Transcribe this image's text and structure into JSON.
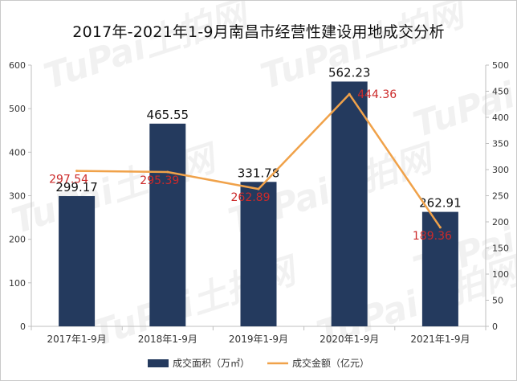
{
  "chart_data": {
    "type": "bar",
    "title": "2017年-2021年1-9月南昌市经营性建设用地成交分析",
    "categories": [
      "2017年1-9月",
      "2018年1-9月",
      "2019年1-9月",
      "2020年1-9月",
      "2021年1-9月"
    ],
    "series": [
      {
        "name": "成交面积（万㎡）",
        "type": "bar",
        "axis": "left",
        "color": "#243a5e",
        "values": [
          299.17,
          465.55,
          331.78,
          562.23,
          262.91
        ]
      },
      {
        "name": "成交金额（亿元）",
        "type": "line",
        "axis": "right",
        "color": "#f0a24a",
        "values": [
          297.54,
          295.39,
          262.89,
          444.36,
          189.36
        ]
      }
    ],
    "y_left": {
      "min": 0,
      "max": 600,
      "step": 100
    },
    "y_right": {
      "min": 0,
      "max": 500,
      "step": 50
    },
    "bar_label_color": "#111111",
    "line_label_color": "#cc2a2a",
    "grid": false,
    "legend_position": "bottom"
  },
  "watermark": "TuPai土拍网"
}
